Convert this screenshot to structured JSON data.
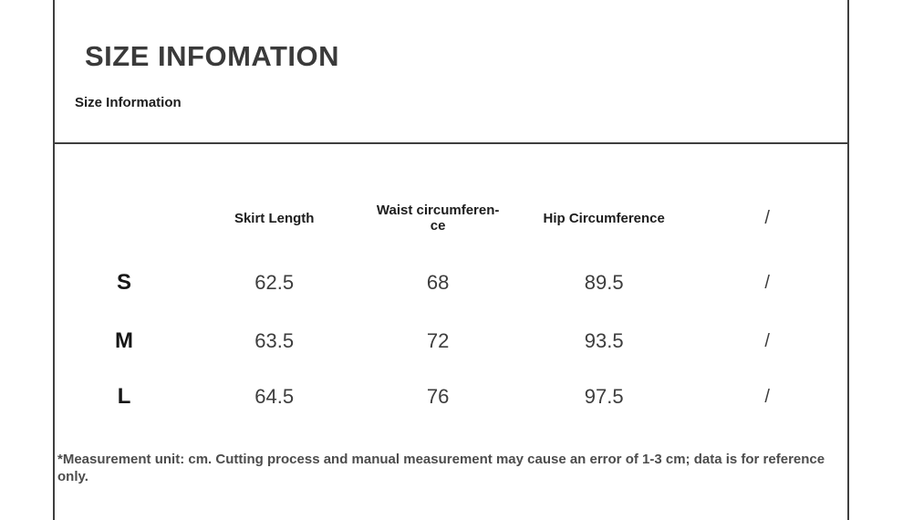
{
  "header": {
    "title": "SIZE INFOMATION",
    "subtitle": "Size Information"
  },
  "table": {
    "headers": {
      "size": "",
      "skirt_length": "Skirt Length",
      "waist": "Waist circumferen-\nce",
      "hip": "Hip Circumference",
      "other": "/"
    },
    "rows": [
      {
        "size": "S",
        "skirt_length": "62.5",
        "waist": "68",
        "hip": "89.5",
        "other": "/"
      },
      {
        "size": "M",
        "skirt_length": "63.5",
        "waist": "72",
        "hip": "93.5",
        "other": "/"
      },
      {
        "size": "L",
        "skirt_length": "64.5",
        "waist": "76",
        "hip": "97.5",
        "other": "/"
      }
    ]
  },
  "footnote": "*Measurement unit: cm. Cutting process and manual measurement may cause an error of 1-3 cm; data is for reference only.",
  "colors": {
    "border": "#3f3f3f",
    "title": "#3a3a3a",
    "text": "#3d3d3d",
    "size_label": "#161616",
    "footnote": "#4c4c4c"
  }
}
